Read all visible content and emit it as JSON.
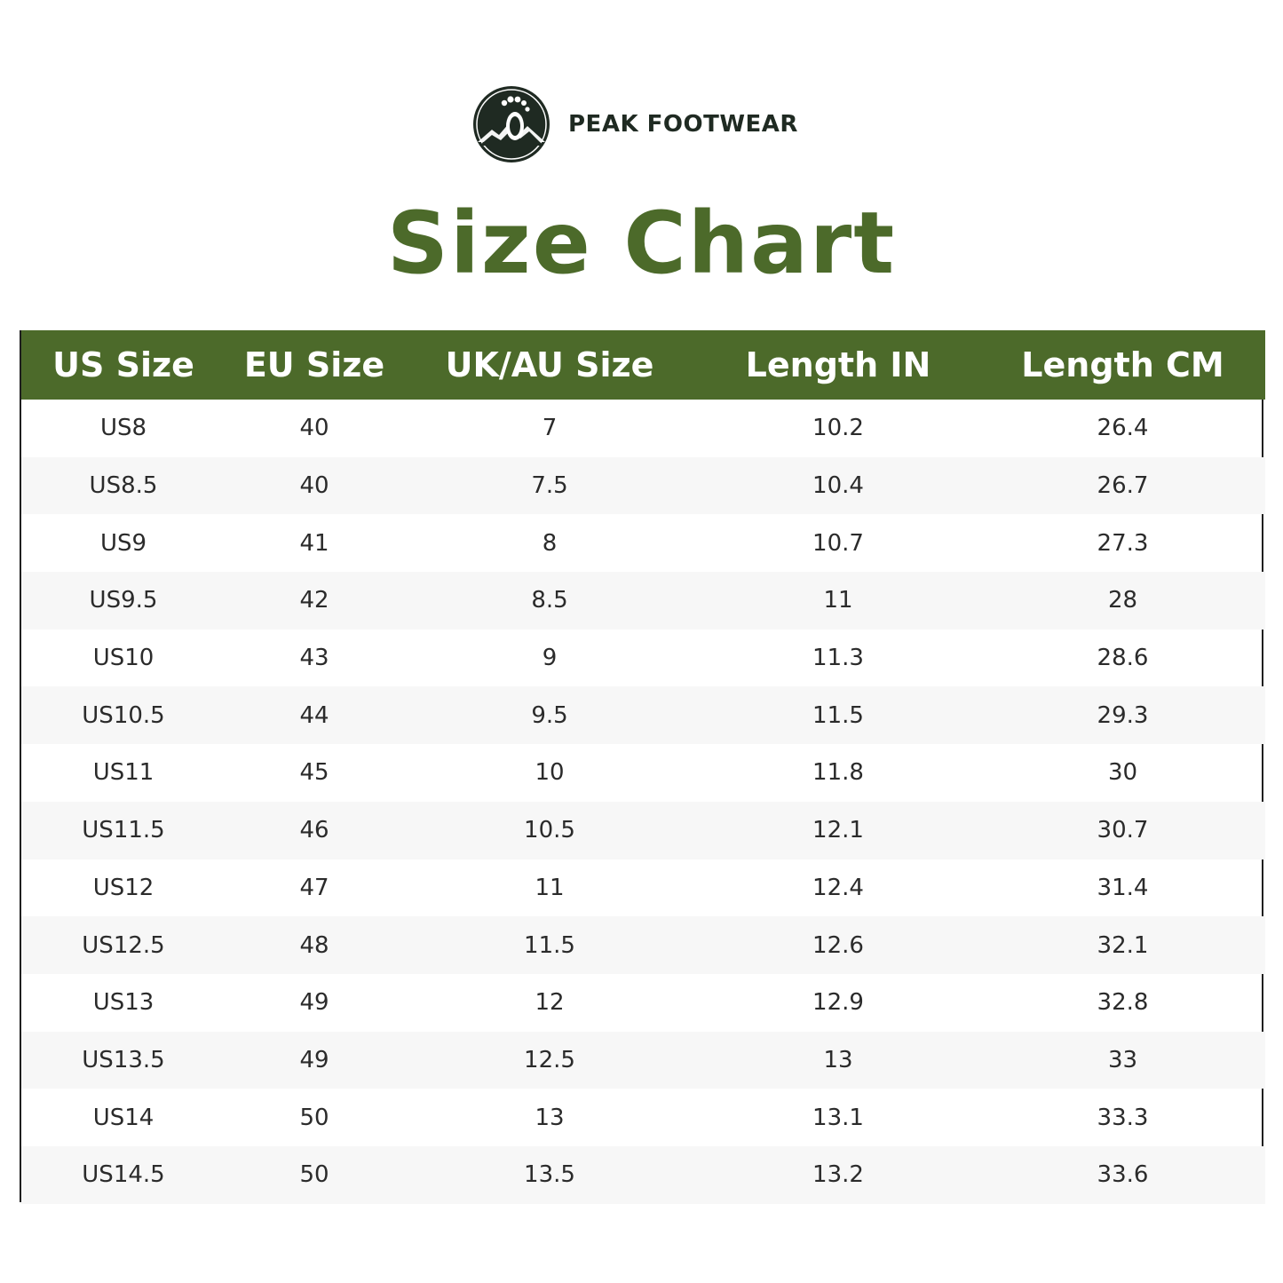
{
  "brand": {
    "name": "PEAK FOOTWEAR",
    "logo_icon": "footprint-mountain-logo-icon",
    "logo_color": "#1f2a22"
  },
  "title": "Size Chart",
  "colors": {
    "accent_green": "#4c6a2a",
    "header_text": "#ffffff",
    "row_alt": "#f7f7f7",
    "border": "#1f1f1f"
  },
  "table": {
    "headers": [
      "US Size",
      "EU Size",
      "UK/AU Size",
      "Length IN",
      "Length CM"
    ],
    "rows": [
      [
        "US8",
        "40",
        "7",
        "10.2",
        "26.4"
      ],
      [
        "US8.5",
        "40",
        "7.5",
        "10.4",
        "26.7"
      ],
      [
        "US9",
        "41",
        "8",
        "10.7",
        "27.3"
      ],
      [
        "US9.5",
        "42",
        "8.5",
        "11",
        "28"
      ],
      [
        "US10",
        "43",
        "9",
        "11.3",
        "28.6"
      ],
      [
        "US10.5",
        "44",
        "9.5",
        "11.5",
        "29.3"
      ],
      [
        "US11",
        "45",
        "10",
        "11.8",
        "30"
      ],
      [
        "US11.5",
        "46",
        "10.5",
        "12.1",
        "30.7"
      ],
      [
        "US12",
        "47",
        "11",
        "12.4",
        "31.4"
      ],
      [
        "US12.5",
        "48",
        "11.5",
        "12.6",
        "32.1"
      ],
      [
        "US13",
        "49",
        "12",
        "12.9",
        "32.8"
      ],
      [
        "US13.5",
        "49",
        "12.5",
        "13",
        "33"
      ],
      [
        "US14",
        "50",
        "13",
        "13.1",
        "33.3"
      ],
      [
        "US14.5",
        "50",
        "13.5",
        "13.2",
        "33.6"
      ]
    ]
  }
}
